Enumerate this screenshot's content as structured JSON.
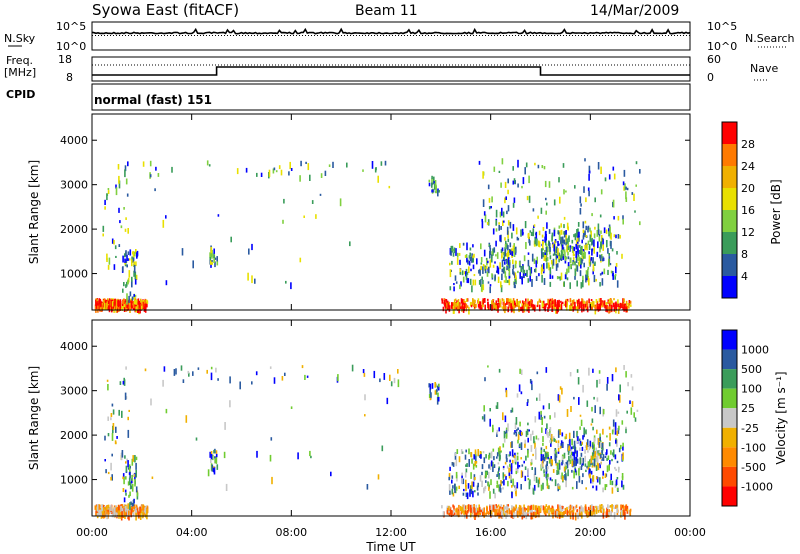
{
  "header": {
    "station": "Syowa East (fitACF)",
    "beam": "Beam 11",
    "date": "14/Mar/2009"
  },
  "noise_panel": {
    "left_label": "N.Sky",
    "right_label": "N.Search",
    "ticks_left": [
      "10^5",
      "10^0"
    ],
    "ticks_right": [
      "10^5",
      "10^0"
    ]
  },
  "freq_panel": {
    "left_label_1": "Freq.",
    "left_label_2": "[MHz]",
    "right_label": "Nave",
    "ticks_left": [
      "18",
      "8"
    ],
    "ticks_right": [
      "60",
      "0"
    ],
    "freq_steps": [
      {
        "from": "00:00",
        "to": "05:00",
        "level": "low"
      },
      {
        "from": "05:00",
        "to": "18:00",
        "level": "high"
      },
      {
        "from": "18:00",
        "to": "24:00",
        "level": "low"
      }
    ]
  },
  "cpid": {
    "label": "CPID",
    "value": "normal (fast) 151"
  },
  "chart_data": [
    {
      "type": "heatmap",
      "name": "power",
      "ylabel": "Slant Range [km]",
      "colorbar_label": "Power [dB]",
      "colorbar_ticks": [
        "28",
        "24",
        "20",
        "16",
        "12",
        "8",
        "4"
      ],
      "colorbar_colors": [
        "#ff0000",
        "#ff7a00",
        "#f0b000",
        "#e8e000",
        "#80d040",
        "#3a9c5a",
        "#2a5aa0",
        "#0000ff"
      ],
      "yticks": [
        "4000",
        "3000",
        "2000",
        "1000"
      ],
      "xticks": [
        "00:00",
        "04:00",
        "08:00",
        "12:00",
        "16:00",
        "20:00",
        "00:00"
      ],
      "ylim": [
        180,
        4590
      ],
      "xlim": [
        0,
        24
      ]
    },
    {
      "type": "heatmap",
      "name": "velocity",
      "ylabel": "Slant Range [km]",
      "xlabel": "Time UT",
      "colorbar_label": "Velocity [m s⁻¹]",
      "colorbar_ticks": [
        "1000",
        "500",
        "100",
        "25",
        "-25",
        "-100",
        "-500",
        "-1000"
      ],
      "colorbar_colors": [
        "#0000ff",
        "#2a5aa0",
        "#3a9c5a",
        "#70cc30",
        "#c8c8c8",
        "#f0b000",
        "#ff8a00",
        "#ff4a00",
        "#ff0000"
      ],
      "yticks": [
        "4000",
        "3000",
        "2000",
        "1000"
      ],
      "xticks": [
        "00:00",
        "04:00",
        "08:00",
        "12:00",
        "16:00",
        "20:00",
        "00:00"
      ],
      "ylim": [
        180,
        4590
      ],
      "xlim": [
        0,
        24
      ]
    }
  ]
}
